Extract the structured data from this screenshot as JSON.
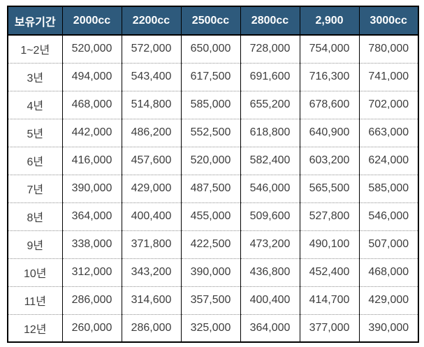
{
  "table": {
    "columns": [
      "보유기간",
      "2000cc",
      "2200cc",
      "2500cc",
      "2800cc",
      "2,900",
      "3000cc"
    ],
    "rows": [
      {
        "period": "1~2년",
        "values": [
          "520,000",
          "572,000",
          "650,000",
          "728,000",
          "754,000",
          "780,000"
        ]
      },
      {
        "period": "3년",
        "values": [
          "494,000",
          "543,400",
          "617,500",
          "691,600",
          "716,300",
          "741,000"
        ]
      },
      {
        "period": "4년",
        "values": [
          "468,000",
          "514,800",
          "585,000",
          "655,200",
          "678,600",
          "702,000"
        ]
      },
      {
        "period": "5년",
        "values": [
          "442,000",
          "486,200",
          "552,500",
          "618,800",
          "640,900",
          "663,000"
        ]
      },
      {
        "period": "6년",
        "values": [
          "416,000",
          "457,600",
          "520,000",
          "582,400",
          "603,200",
          "624,000"
        ]
      },
      {
        "period": "7년",
        "values": [
          "390,000",
          "429,000",
          "487,500",
          "546,000",
          "565,500",
          "585,000"
        ]
      },
      {
        "period": "8년",
        "values": [
          "364,000",
          "400,400",
          "455,000",
          "509,600",
          "527,800",
          "546,000"
        ]
      },
      {
        "period": "9년",
        "values": [
          "338,000",
          "371,800",
          "422,500",
          "473,200",
          "490,100",
          "507,000"
        ]
      },
      {
        "period": "10년",
        "values": [
          "312,000",
          "343,200",
          "390,000",
          "436,800",
          "452,400",
          "468,000"
        ]
      },
      {
        "period": "11년",
        "values": [
          "286,000",
          "314,600",
          "357,500",
          "400,400",
          "414,700",
          "429,000"
        ]
      },
      {
        "period": "12년",
        "values": [
          "260,000",
          "286,000",
          "325,000",
          "364,000",
          "377,000",
          "390,000"
        ]
      }
    ]
  },
  "colors": {
    "header_bg": "#2E5A7C",
    "header_text": "#FFFFFF",
    "cell_text": "#3D3D3D",
    "outer_border": "#000000",
    "row_divider": "#8F8F8F"
  }
}
